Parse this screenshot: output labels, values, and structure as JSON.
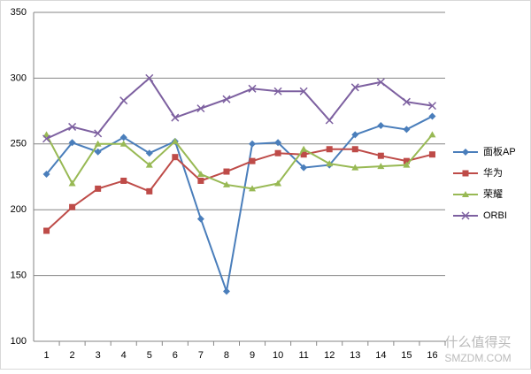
{
  "chart_data": {
    "type": "line",
    "categories": [
      "1",
      "2",
      "3",
      "4",
      "5",
      "6",
      "7",
      "8",
      "9",
      "10",
      "11",
      "12",
      "13",
      "14",
      "15",
      "16"
    ],
    "series": [
      {
        "name": "面板AP",
        "color": "#4a7ebb",
        "marker": "diamond",
        "values": [
          227,
          251,
          244,
          255,
          243,
          252,
          193,
          138,
          250,
          251,
          232,
          234,
          257,
          264,
          261,
          271
        ]
      },
      {
        "name": "华为",
        "color": "#be4b48",
        "marker": "square",
        "values": [
          184,
          202,
          216,
          222,
          214,
          240,
          222,
          229,
          237,
          243,
          242,
          246,
          246,
          241,
          237,
          242
        ]
      },
      {
        "name": "荣耀",
        "color": "#98b954",
        "marker": "triangle",
        "values": [
          257,
          220,
          250,
          250,
          234,
          252,
          227,
          219,
          216,
          220,
          246,
          235,
          232,
          233,
          234,
          257
        ]
      },
      {
        "name": "ORBI",
        "color": "#7d60a0",
        "marker": "x",
        "values": [
          254,
          263,
          258,
          283,
          300,
          270,
          277,
          284,
          292,
          290,
          290,
          268,
          293,
          297,
          282,
          279
        ]
      }
    ],
    "ylim": [
      100,
      350
    ],
    "yticks": [
      100,
      150,
      200,
      250,
      300,
      350
    ],
    "grid": true,
    "legend": "right",
    "watermark": {
      "name": "什么值得买",
      "site": "SMZDM.COM"
    }
  }
}
